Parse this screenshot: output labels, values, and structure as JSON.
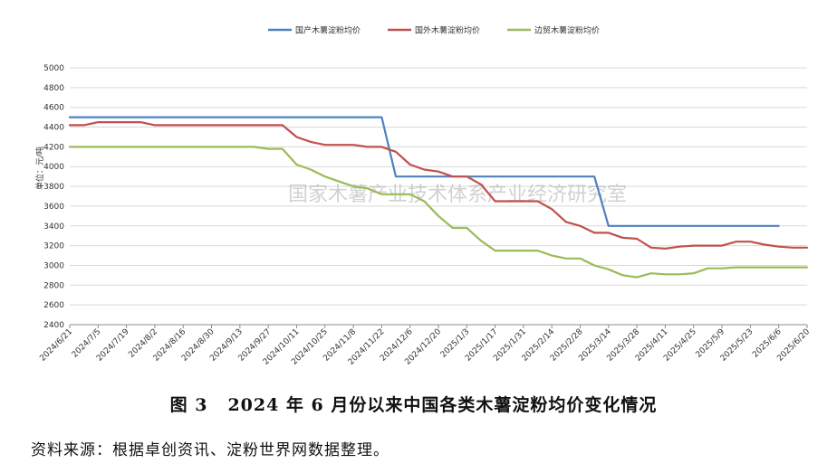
{
  "chart_data": {
    "type": "line",
    "title": "",
    "xlabel": "",
    "ylabel": "单位：元/吨",
    "ylim": [
      2400,
      5000
    ],
    "yticks": [
      2400,
      2600,
      2800,
      3000,
      3200,
      3400,
      3600,
      3800,
      4000,
      4200,
      4400,
      4600,
      4800,
      5000
    ],
    "grid": "horizontal",
    "legend_position": "top-center",
    "x_tick_labels": [
      "2024/6/21",
      "2024/7/5",
      "2024/7/19",
      "2024/8/2",
      "2024/8/16",
      "2024/8/30",
      "2024/9/13",
      "2024/9/27",
      "2024/10/11",
      "2024/10/25",
      "2024/11/8",
      "2024/11/22",
      "2024/12/6",
      "2024/12/20",
      "2025/1/3",
      "2025/1/17",
      "2025/1/31",
      "2025/2/14",
      "2025/2/28",
      "2025/3/14",
      "2025/3/28",
      "2025/4/11",
      "2025/4/25",
      "2025/5/9",
      "2025/5/23",
      "2025/6/6",
      "2025/6/20"
    ],
    "watermark": "国家木薯产业技术体系产业经济研究室",
    "series": [
      {
        "name": "国产木薯淀粉均价",
        "color": "#4f81bd",
        "points": [
          [
            "2024/6/21",
            4500
          ],
          [
            "2024/7/5",
            4500
          ],
          [
            "2024/7/19",
            4500
          ],
          [
            "2024/8/2",
            4500
          ],
          [
            "2024/8/16",
            4500
          ],
          [
            "2024/8/30",
            4500
          ],
          [
            "2024/9/13",
            4500
          ],
          [
            "2024/9/27",
            4500
          ],
          [
            "2024/10/11",
            4500
          ],
          [
            "2024/10/25",
            4500
          ],
          [
            "2024/11/8",
            4500
          ],
          [
            "2024/11/22",
            4500
          ],
          [
            "2024/11/29",
            3900
          ],
          [
            "2024/12/6",
            3900
          ],
          [
            "2024/12/20",
            3900
          ],
          [
            "2025/1/3",
            3900
          ],
          [
            "2025/1/17",
            3900
          ],
          [
            "2025/1/31",
            3900
          ],
          [
            "2025/2/14",
            3900
          ],
          [
            "2025/2/28",
            3900
          ],
          [
            "2025/3/7",
            3900
          ],
          [
            "2025/3/14",
            3400
          ],
          [
            "2025/3/28",
            3400
          ],
          [
            "2025/4/11",
            3400
          ],
          [
            "2025/4/25",
            3400
          ],
          [
            "2025/5/9",
            3400
          ],
          [
            "2025/5/23",
            3400
          ],
          [
            "2025/6/6",
            3400
          ]
        ]
      },
      {
        "name": "国外木薯淀粉均价",
        "color": "#c0504d",
        "points": [
          [
            "2024/6/21",
            4420
          ],
          [
            "2024/6/28",
            4420
          ],
          [
            "2024/7/5",
            4450
          ],
          [
            "2024/7/19",
            4450
          ],
          [
            "2024/7/26",
            4450
          ],
          [
            "2024/8/2",
            4420
          ],
          [
            "2024/8/16",
            4420
          ],
          [
            "2024/8/30",
            4420
          ],
          [
            "2024/9/13",
            4420
          ],
          [
            "2024/9/27",
            4420
          ],
          [
            "2024/10/4",
            4420
          ],
          [
            "2024/10/11",
            4300
          ],
          [
            "2024/10/18",
            4250
          ],
          [
            "2024/10/25",
            4220
          ],
          [
            "2024/11/8",
            4220
          ],
          [
            "2024/11/15",
            4200
          ],
          [
            "2024/11/22",
            4200
          ],
          [
            "2024/11/29",
            4150
          ],
          [
            "2024/12/6",
            4020
          ],
          [
            "2024/12/13",
            3970
          ],
          [
            "2024/12/20",
            3950
          ],
          [
            "2024/12/27",
            3900
          ],
          [
            "2025/1/3",
            3900
          ],
          [
            "2025/1/10",
            3820
          ],
          [
            "2025/1/17",
            3650
          ],
          [
            "2025/1/31",
            3650
          ],
          [
            "2025/2/7",
            3650
          ],
          [
            "2025/2/14",
            3570
          ],
          [
            "2025/2/21",
            3440
          ],
          [
            "2025/2/28",
            3400
          ],
          [
            "2025/3/7",
            3330
          ],
          [
            "2025/3/14",
            3330
          ],
          [
            "2025/3/21",
            3280
          ],
          [
            "2025/3/28",
            3270
          ],
          [
            "2025/4/4",
            3180
          ],
          [
            "2025/4/11",
            3170
          ],
          [
            "2025/4/18",
            3190
          ],
          [
            "2025/4/25",
            3200
          ],
          [
            "2025/5/9",
            3200
          ],
          [
            "2025/5/16",
            3240
          ],
          [
            "2025/5/23",
            3240
          ],
          [
            "2025/5/30",
            3210
          ],
          [
            "2025/6/6",
            3190
          ],
          [
            "2025/6/13",
            3180
          ],
          [
            "2025/6/20",
            3180
          ]
        ]
      },
      {
        "name": "边贸木薯淀粉均价",
        "color": "#9bbb59",
        "points": [
          [
            "2024/6/21",
            4200
          ],
          [
            "2024/7/5",
            4200
          ],
          [
            "2024/7/19",
            4200
          ],
          [
            "2024/8/2",
            4200
          ],
          [
            "2024/8/16",
            4200
          ],
          [
            "2024/8/30",
            4200
          ],
          [
            "2024/9/13",
            4200
          ],
          [
            "2024/9/20",
            4200
          ],
          [
            "2024/9/27",
            4180
          ],
          [
            "2024/10/4",
            4180
          ],
          [
            "2024/10/11",
            4020
          ],
          [
            "2024/10/18",
            3970
          ],
          [
            "2024/10/25",
            3900
          ],
          [
            "2024/11/8",
            3800
          ],
          [
            "2024/11/15",
            3780
          ],
          [
            "2024/11/22",
            3720
          ],
          [
            "2024/12/6",
            3720
          ],
          [
            "2024/12/13",
            3650
          ],
          [
            "2024/12/20",
            3500
          ],
          [
            "2024/12/27",
            3380
          ],
          [
            "2025/1/3",
            3380
          ],
          [
            "2025/1/10",
            3250
          ],
          [
            "2025/1/17",
            3150
          ],
          [
            "2025/1/31",
            3150
          ],
          [
            "2025/2/7",
            3150
          ],
          [
            "2025/2/14",
            3100
          ],
          [
            "2025/2/21",
            3070
          ],
          [
            "2025/2/28",
            3070
          ],
          [
            "2025/3/7",
            3000
          ],
          [
            "2025/3/14",
            2960
          ],
          [
            "2025/3/21",
            2900
          ],
          [
            "2025/3/28",
            2880
          ],
          [
            "2025/4/4",
            2920
          ],
          [
            "2025/4/11",
            2910
          ],
          [
            "2025/4/18",
            2910
          ],
          [
            "2025/4/25",
            2920
          ],
          [
            "2025/5/2",
            2970
          ],
          [
            "2025/5/9",
            2970
          ],
          [
            "2025/5/16",
            2980
          ],
          [
            "2025/5/23",
            2980
          ],
          [
            "2025/6/6",
            2980
          ],
          [
            "2025/6/20",
            2980
          ]
        ]
      }
    ]
  },
  "caption": {
    "figure_number": "图 3",
    "text": "2024 年 6 月份以来中国各类木薯淀粉均价变化情况"
  },
  "source_note": "资料来源：根据卓创资讯、淀粉世界网数据整理。"
}
